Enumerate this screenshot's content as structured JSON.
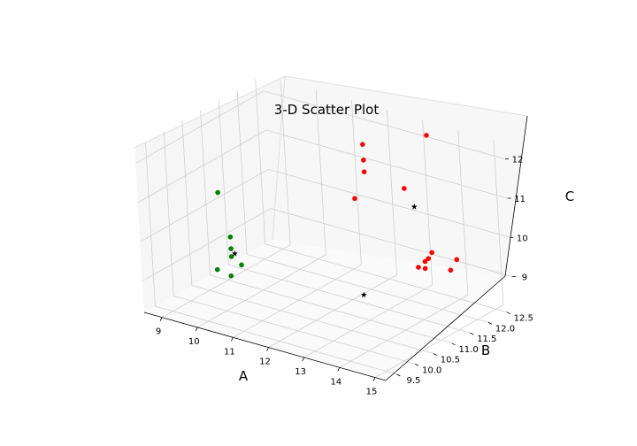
{
  "chart_data": {
    "type": "scatter",
    "title": "3-D Scatter Plot",
    "xlabel": "A",
    "ylabel": "B",
    "zlabel": "C",
    "xlim": [
      8.5,
      15.3
    ],
    "ylim": [
      9.2,
      12.7
    ],
    "zlim": [
      8.2,
      12.4
    ],
    "xticks": [
      "9",
      "10",
      "11",
      "12",
      "13",
      "14",
      "15"
    ],
    "yticks": [
      "9.5",
      "10.0",
      "10.5",
      "11.0",
      "11.5",
      "12.0",
      "12.5"
    ],
    "zticks": [
      "9",
      "10",
      "11",
      "12"
    ],
    "grid": true,
    "series": [
      {
        "color": "#ff0000",
        "marker": "circle",
        "points": [
          [
            12.0,
            12.0,
            11.9
          ],
          [
            13.3,
            12.5,
            12.2
          ],
          [
            12.0,
            12.0,
            11.5
          ],
          [
            12.0,
            12.0,
            11.2
          ],
          [
            12.9,
            12.2,
            10.9
          ],
          [
            11.9,
            11.8,
            10.6
          ],
          [
            14.5,
            12.0,
            9.6
          ],
          [
            14.2,
            12.1,
            9.2
          ],
          [
            13.8,
            12.0,
            9.6
          ],
          [
            13.7,
            11.9,
            9.4
          ],
          [
            13.8,
            11.9,
            9.5
          ],
          [
            13.8,
            11.8,
            9.3
          ],
          [
            13.5,
            11.9,
            9.2
          ]
        ]
      },
      {
        "color": "#008000",
        "marker": "circle",
        "points": [
          [
            9.4,
            10.5,
            10.8
          ],
          [
            9.9,
            10.3,
            9.9
          ],
          [
            9.9,
            10.3,
            9.6
          ],
          [
            9.9,
            10.3,
            9.4
          ],
          [
            10.5,
            10.0,
            9.5
          ],
          [
            9.8,
            10.0,
            9.2
          ],
          [
            10.4,
            9.8,
            9.3
          ]
        ]
      },
      {
        "color": "#000000",
        "marker": "star",
        "points": [
          [
            10.0,
            10.3,
            9.5
          ],
          [
            13.7,
            11.7,
            10.9
          ],
          [
            14.6,
            9.4,
            10.1
          ]
        ]
      }
    ]
  }
}
